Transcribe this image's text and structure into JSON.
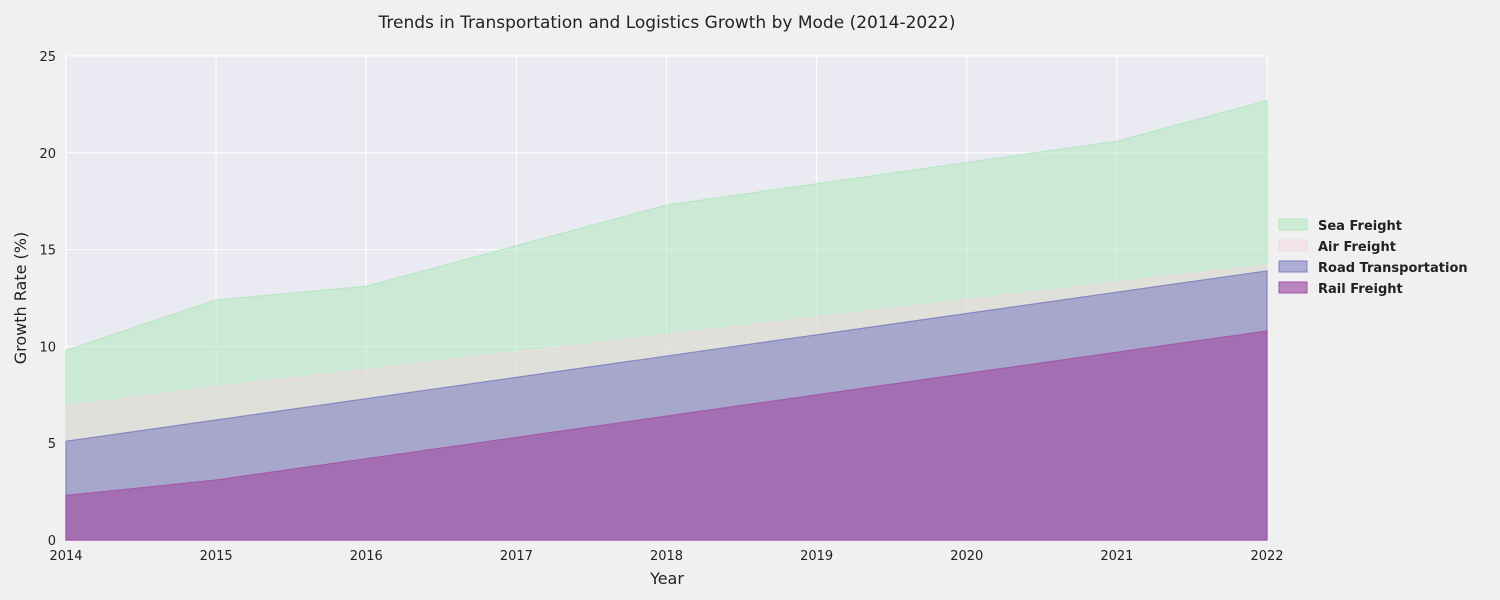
{
  "chart_data": {
    "type": "area",
    "title": "Trends in Transportation and Logistics Growth by Mode (2014-2022)",
    "xlabel": "Year",
    "ylabel": "Growth Rate (%)",
    "x": [
      "2014",
      "2015",
      "2016",
      "2017",
      "2018",
      "2019",
      "2020",
      "2021",
      "2022"
    ],
    "xlim": [
      2014,
      2022
    ],
    "ylim": [
      0,
      25
    ],
    "yticks": [
      "0",
      "5",
      "10",
      "15",
      "20",
      "25"
    ],
    "grid": true,
    "stacked": false,
    "legend_position": "right",
    "series": [
      {
        "name": "Sea Freight",
        "color": "#b3e8c0",
        "values": [
          9.8,
          12.4,
          13.1,
          15.2,
          17.3,
          18.4,
          19.5,
          20.6,
          22.7
        ]
      },
      {
        "name": "Air Freight",
        "color": "#f4d8e0",
        "values": [
          6.9,
          7.9,
          8.8,
          9.7,
          10.6,
          11.5,
          12.4,
          13.3,
          14.2
        ]
      },
      {
        "name": "Road Transportation",
        "color": "#8080c0",
        "values": [
          5.1,
          6.2,
          7.3,
          8.4,
          9.5,
          10.6,
          11.7,
          12.8,
          13.9
        ]
      },
      {
        "name": "Rail Freight",
        "color": "#a355a8",
        "values": [
          2.3,
          3.1,
          4.2,
          5.3,
          6.4,
          7.5,
          8.6,
          9.7,
          10.8
        ]
      }
    ]
  }
}
